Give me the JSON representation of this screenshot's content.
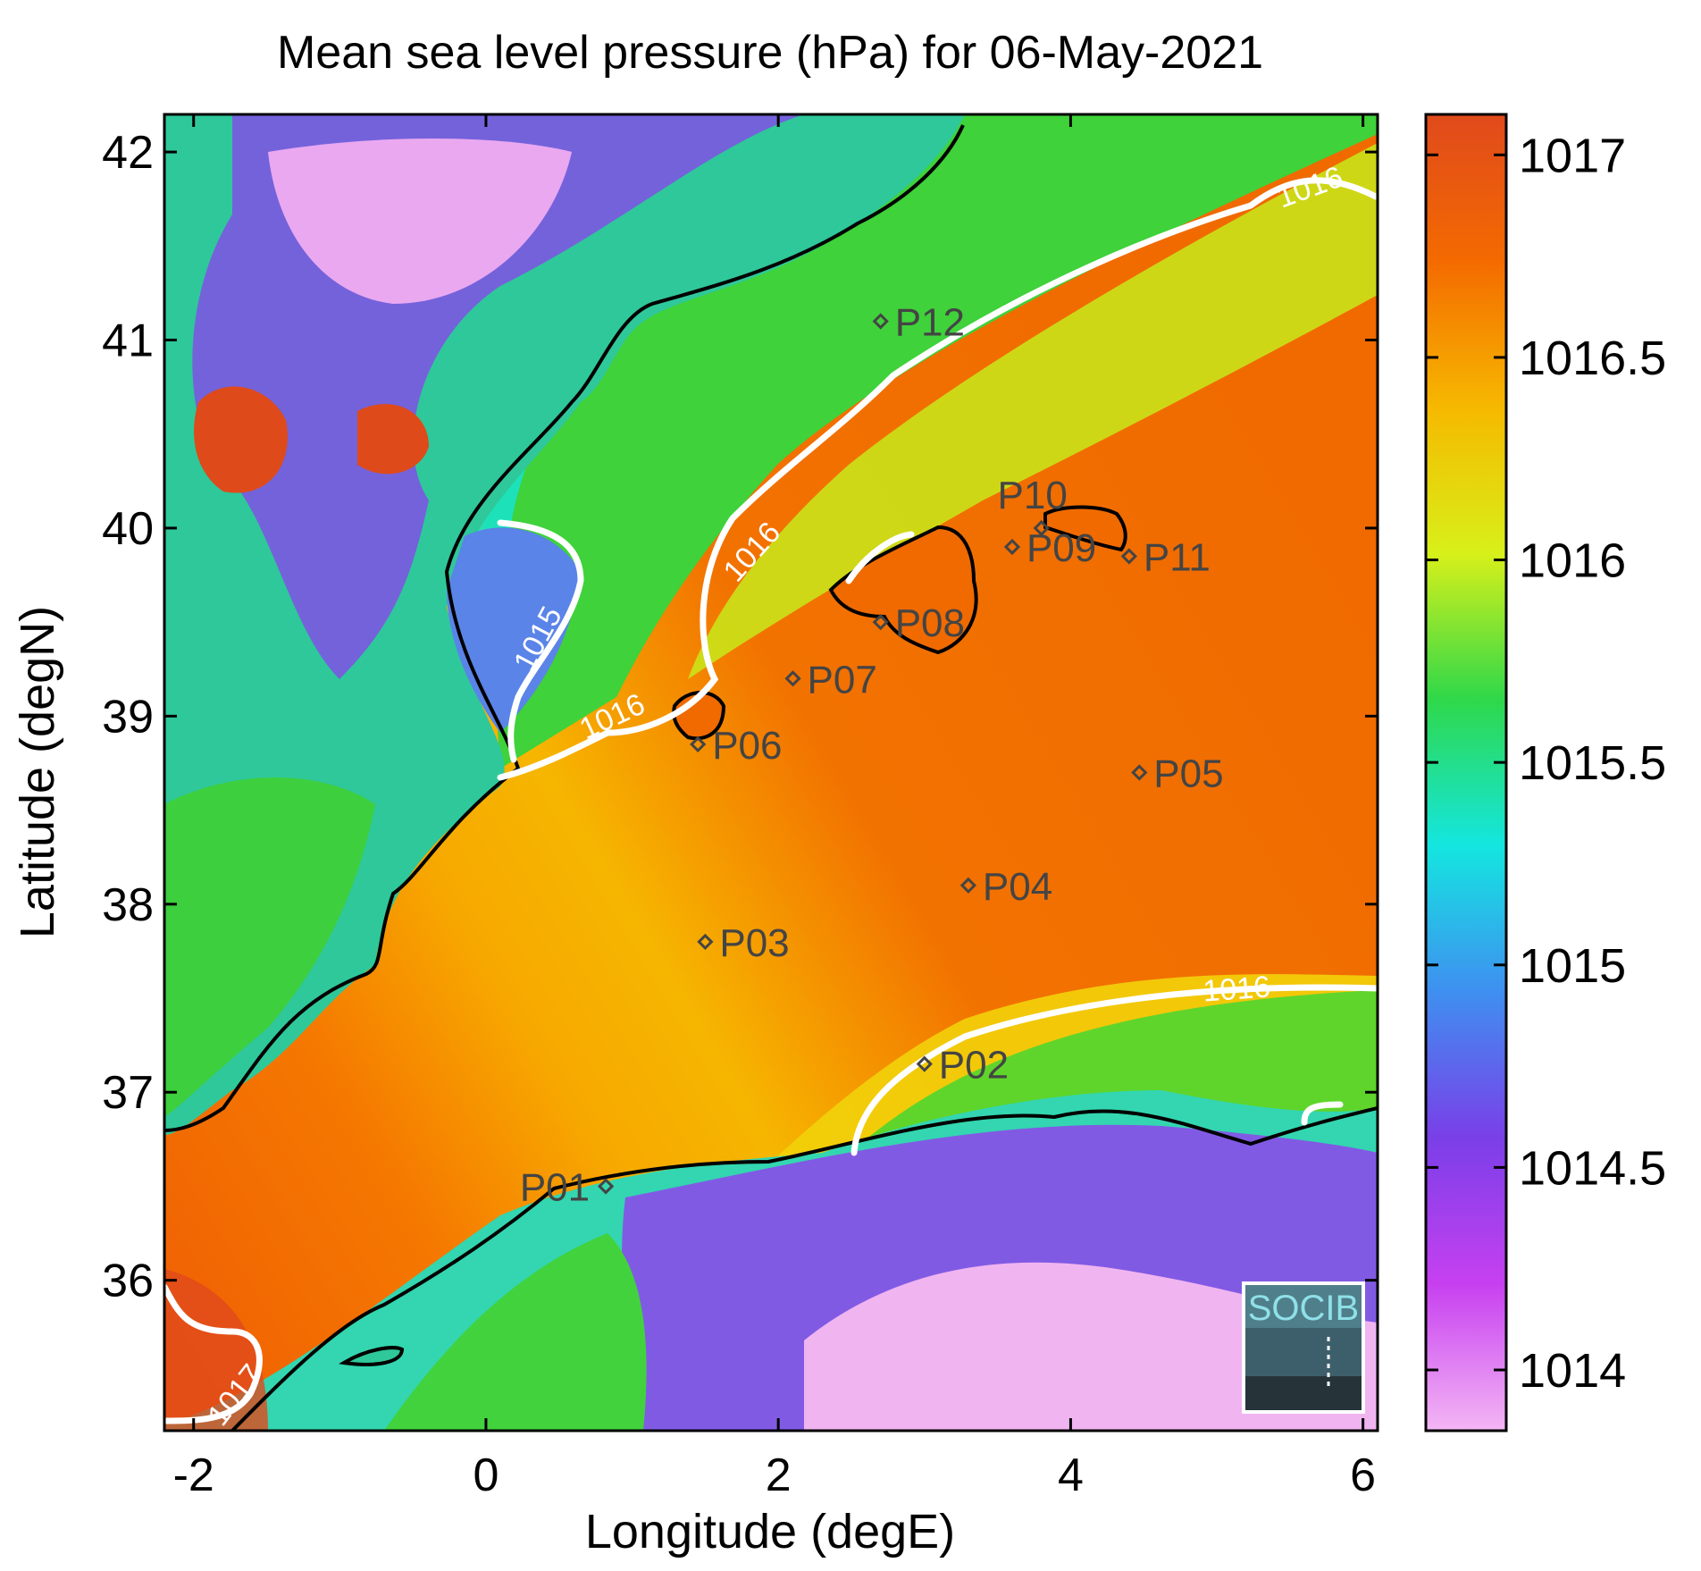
{
  "chart_data": {
    "type": "heatmap",
    "title": "Mean sea level pressure (hPa) for 06-May-2021",
    "xlabel": "Longitude (degE)",
    "ylabel": "Latitude (degN)",
    "xlim": [
      -2.2,
      6.1
    ],
    "ylim": [
      35.2,
      42.2
    ],
    "xticks": [
      -2,
      0,
      2,
      4,
      6
    ],
    "yticks": [
      36,
      37,
      38,
      39,
      40,
      41,
      42
    ],
    "xtick_labels": [
      "-2",
      "0",
      "2",
      "4",
      "6"
    ],
    "ytick_labels": [
      "36",
      "37",
      "38",
      "39",
      "40",
      "41",
      "42"
    ],
    "colorbar": {
      "range": [
        1013.85,
        1017.1
      ],
      "ticks": [
        1014,
        1014.5,
        1015,
        1015.5,
        1016,
        1016.5,
        1017
      ],
      "tick_labels": [
        "1014",
        "1014.5",
        "1015",
        "1015.5",
        "1016",
        "1016.5",
        "1017"
      ],
      "colormap": [
        "#f4b6f4",
        "#c740f0",
        "#7a3fe8",
        "#3f8ff0",
        "#14e6e0",
        "#2fd84a",
        "#d8f01a",
        "#f6b800",
        "#f46a00",
        "#e04a1c"
      ]
    },
    "contour_labels": [
      "1016",
      "1016",
      "1016",
      "1016",
      "1015",
      "1017"
    ],
    "points": [
      {
        "name": "P01",
        "lon": 0.82,
        "lat": 36.5
      },
      {
        "name": "P02",
        "lon": 3.0,
        "lat": 37.15
      },
      {
        "name": "P03",
        "lon": 1.5,
        "lat": 37.8
      },
      {
        "name": "P04",
        "lon": 3.3,
        "lat": 38.1
      },
      {
        "name": "P05",
        "lon": 4.47,
        "lat": 38.7
      },
      {
        "name": "P06",
        "lon": 1.45,
        "lat": 38.85
      },
      {
        "name": "P07",
        "lon": 2.1,
        "lat": 39.2
      },
      {
        "name": "P08",
        "lon": 2.7,
        "lat": 39.5
      },
      {
        "name": "P09",
        "lon": 3.6,
        "lat": 39.9
      },
      {
        "name": "P10",
        "lon": 3.8,
        "lat": 40.0
      },
      {
        "name": "P11",
        "lon": 4.4,
        "lat": 39.85
      },
      {
        "name": "P12",
        "lon": 2.7,
        "lat": 41.1
      }
    ],
    "logo_text": "SOCIB"
  }
}
